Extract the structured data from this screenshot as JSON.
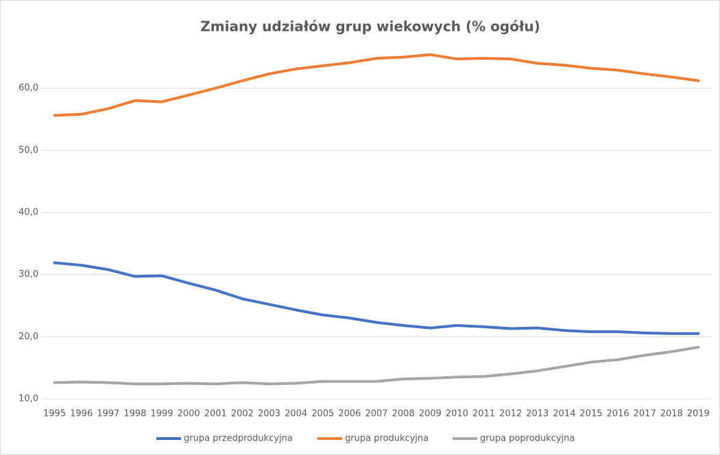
{
  "chart_data": {
    "type": "line",
    "title": "Zmiany udziałów grup wiekowych (% ogółu)",
    "categories": [
      "1995",
      "1996",
      "1997",
      "1998",
      "1999",
      "2000",
      "2001",
      "2002",
      "2003",
      "2004",
      "2005",
      "2006",
      "2007",
      "2008",
      "2009",
      "2010",
      "2011",
      "2012",
      "2013",
      "2014",
      "2015",
      "2016",
      "2017",
      "2018",
      "2019"
    ],
    "series": [
      {
        "name": "grupa przedprodukcyjna",
        "color": "#4472c4",
        "values": [
          31.9,
          31.5,
          30.8,
          29.7,
          29.8,
          28.6,
          27.5,
          26.1,
          25.2,
          24.3,
          23.5,
          23.0,
          22.3,
          21.8,
          21.4,
          21.8,
          21.6,
          21.3,
          21.4,
          21.0,
          20.8,
          20.8,
          20.6,
          20.5,
          20.5
        ]
      },
      {
        "name": "grupa produkcyjna",
        "color": "#ed7d31",
        "values": [
          55.6,
          55.8,
          56.7,
          58.0,
          57.8,
          58.9,
          60.0,
          61.2,
          62.3,
          63.1,
          63.6,
          64.1,
          64.8,
          65.0,
          65.4,
          64.7,
          64.8,
          64.7,
          64.0,
          63.7,
          63.2,
          62.9,
          62.3,
          61.8,
          61.2
        ]
      },
      {
        "name": "grupa poprodukcyjna",
        "color": "#a5a5a5",
        "values": [
          12.6,
          12.7,
          12.6,
          12.4,
          12.4,
          12.5,
          12.4,
          12.6,
          12.4,
          12.5,
          12.8,
          12.8,
          12.8,
          13.2,
          13.3,
          13.5,
          13.6,
          14.0,
          14.5,
          15.2,
          15.9,
          16.3,
          17.0,
          17.6,
          18.3
        ]
      }
    ],
    "ylim": [
      10,
      70
    ],
    "yticks": [
      {
        "value": 10,
        "label": "10,0"
      },
      {
        "value": 20,
        "label": "20,0"
      },
      {
        "value": 30,
        "label": "30,0"
      },
      {
        "value": 40,
        "label": "40,0"
      },
      {
        "value": 50,
        "label": "50,0"
      },
      {
        "value": 60,
        "label": "60,0"
      }
    ],
    "grid": true,
    "legend": "bottom"
  }
}
